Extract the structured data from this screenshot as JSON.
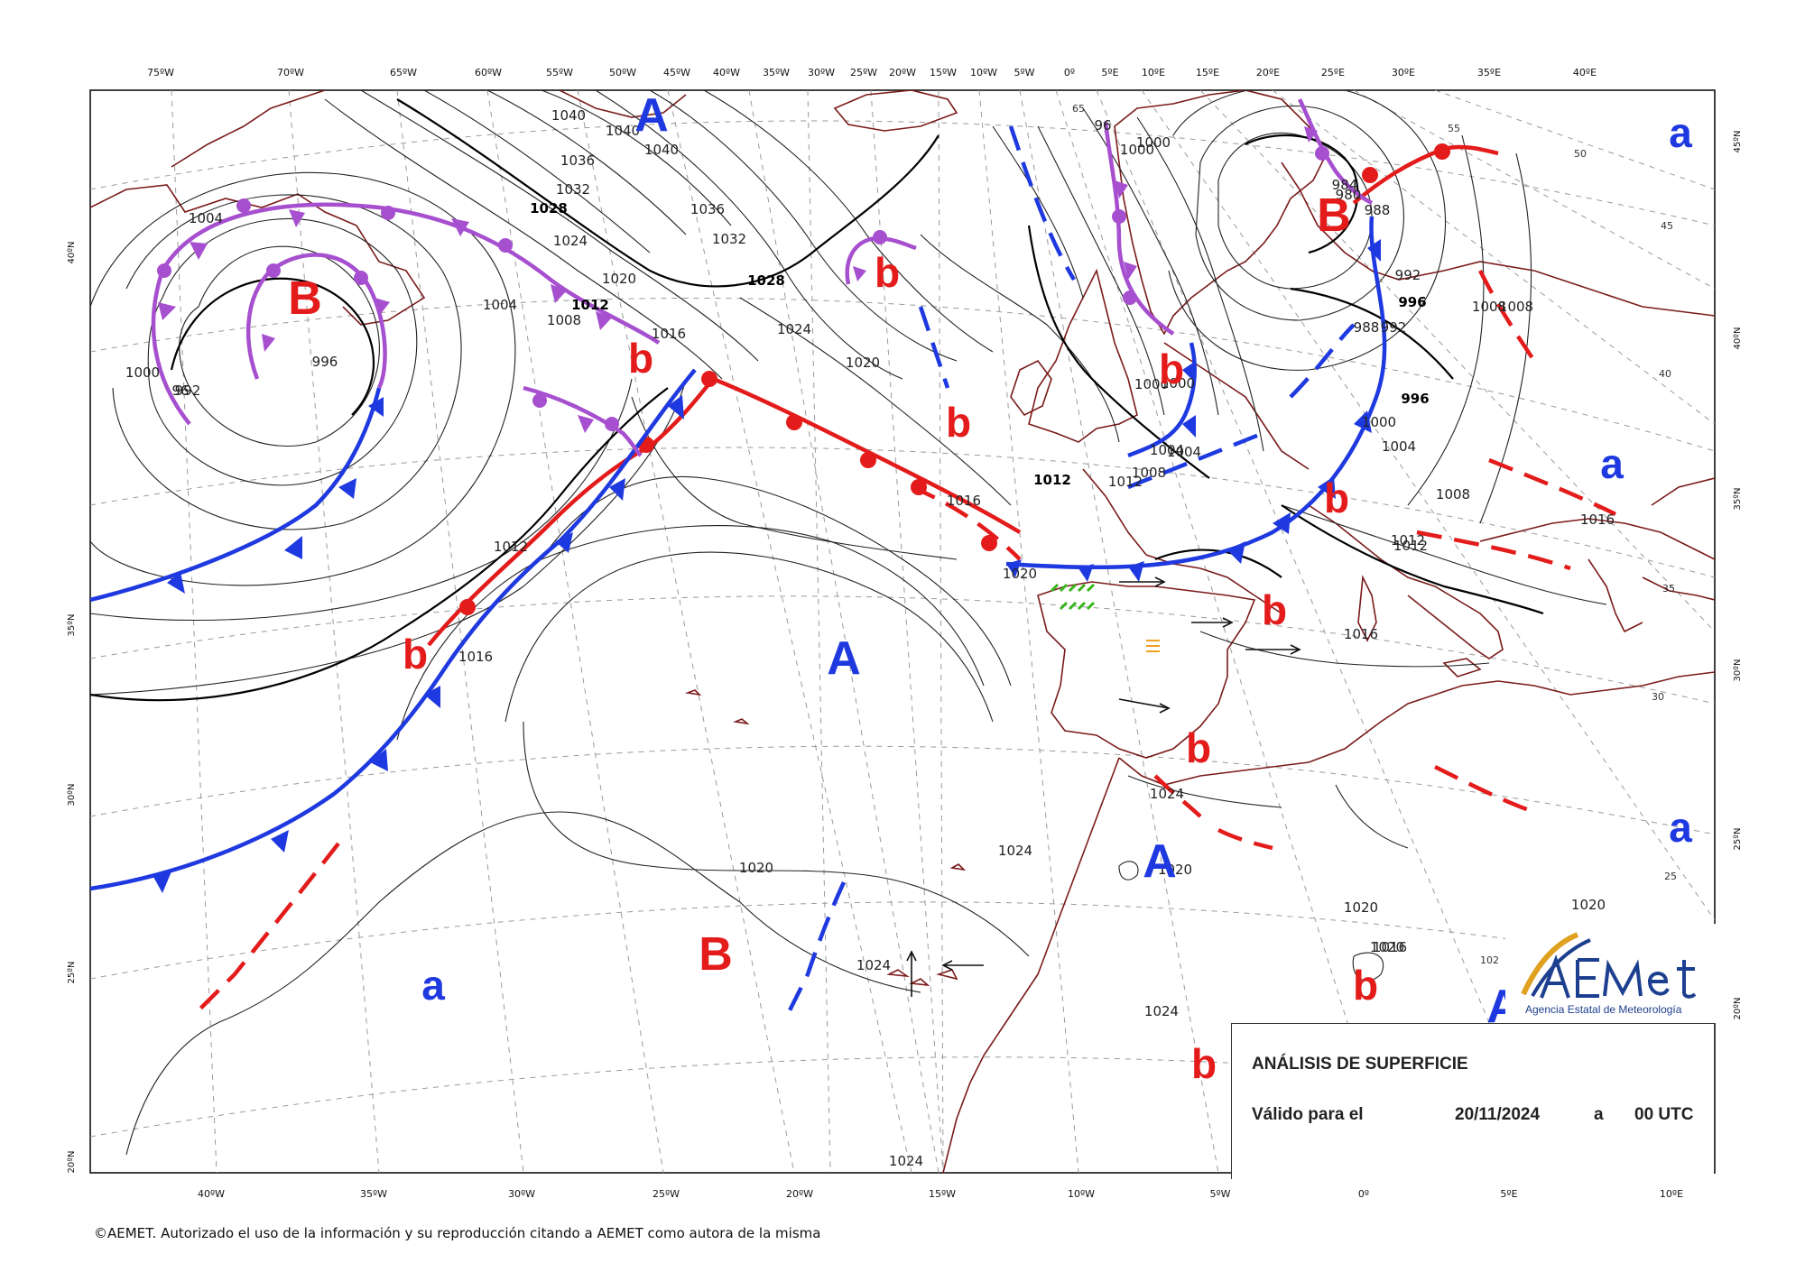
{
  "map": {
    "title": "ANÁLISIS DE SUPERFICIE",
    "valid_label": "Válido para el",
    "valid_date": "20/11/2024",
    "valid_connector": "a",
    "valid_time": "00 UTC",
    "copyright": "©AEMET. Autorizado el uso de la información y su reproducción citando a AEMET como autora de la misma",
    "logo": {
      "wordmark": "AEmet",
      "subtitle": "Agencia Estatal de Meteorología"
    },
    "colors": {
      "cold_front": "#1f39e0",
      "warm_front": "#e41b1b",
      "occluded_front": "#a64fcf",
      "high_label": "#1f39e0",
      "low_label": "#e41b1b",
      "coastline": "#7a1a1a",
      "isobar": "#222222",
      "grid": "#9a9a9a"
    }
  },
  "axes": {
    "top_longitudes": [
      "75ºW",
      "70ºW",
      "65ºW",
      "60ºW",
      "55ºW",
      "50ºW",
      "45ºW",
      "40ºW",
      "35ºW",
      "30ºW",
      "25ºW",
      "20ºW",
      "15ºW",
      "10ºW",
      "5ºW",
      "0º",
      "5ºE",
      "10ºE",
      "15ºE",
      "20ºE",
      "25ºE",
      "30ºE",
      "35ºE",
      "40ºE"
    ],
    "bottom_longitudes": [
      "40ºW",
      "35ºW",
      "30ºW",
      "25ºW",
      "20ºW",
      "15ºW",
      "10ºW",
      "5ºW",
      "0º",
      "5ºE",
      "10ºE"
    ],
    "left_latitudes": [
      "40ºN",
      "35ºN",
      "30ºN",
      "25ºN",
      "20ºN"
    ],
    "right_latitudes": [
      "45ºN",
      "40ºN",
      "35ºN",
      "30ºN",
      "25ºN",
      "20ºN"
    ]
  },
  "grid_labels": [
    "65",
    "55",
    "50",
    "45",
    "40",
    "35",
    "30",
    "25",
    "1",
    "102"
  ],
  "pressure_centers": [
    {
      "label": "A",
      "kind": "high"
    },
    {
      "label": "B",
      "kind": "low"
    },
    {
      "label": "b",
      "kind": "low-secondary"
    },
    {
      "label": "b",
      "kind": "low-secondary"
    },
    {
      "label": "b",
      "kind": "low-secondary"
    },
    {
      "label": "b",
      "kind": "low-secondary"
    },
    {
      "label": "B",
      "kind": "low"
    },
    {
      "label": "a",
      "kind": "high-secondary"
    },
    {
      "label": "a",
      "kind": "high-secondary"
    },
    {
      "label": "b",
      "kind": "low-secondary"
    },
    {
      "label": "b",
      "kind": "low-secondary"
    },
    {
      "label": "b",
      "kind": "low-secondary"
    },
    {
      "label": "A",
      "kind": "high"
    },
    {
      "label": "b",
      "kind": "low-secondary"
    },
    {
      "label": "b",
      "kind": "low-secondary"
    },
    {
      "label": "A",
      "kind": "high"
    },
    {
      "label": "a",
      "kind": "high-secondary"
    },
    {
      "label": "a",
      "kind": "high-secondary"
    },
    {
      "label": "B",
      "kind": "low"
    },
    {
      "label": "b",
      "kind": "low-secondary"
    },
    {
      "label": "A",
      "kind": "high"
    }
  ],
  "isobar_labels": [
    "1040",
    "1040",
    "1040",
    "1036",
    "1032",
    "1028",
    "1024",
    "1020",
    "1012",
    "1008",
    "1004",
    "1004",
    "1000",
    "996",
    "992",
    "96",
    "1036",
    "1032",
    "1028",
    "1024",
    "1020",
    "1016",
    "1016",
    "1020",
    "1012",
    "1008",
    "1004",
    "1000",
    "96",
    "1000",
    "984",
    "980",
    "988",
    "992",
    "996",
    "988",
    "992",
    "996",
    "1000",
    "1004",
    "1008",
    "1008",
    "1012",
    "1016",
    "1016",
    "1020",
    "1024",
    "1024",
    "1024",
    "1020",
    "1020",
    "1020",
    "1020",
    "1024",
    "1024",
    "1016",
    "1000",
    "1008",
    "1012",
    "1012",
    "1016",
    "1004",
    "1000",
    "1012"
  ]
}
